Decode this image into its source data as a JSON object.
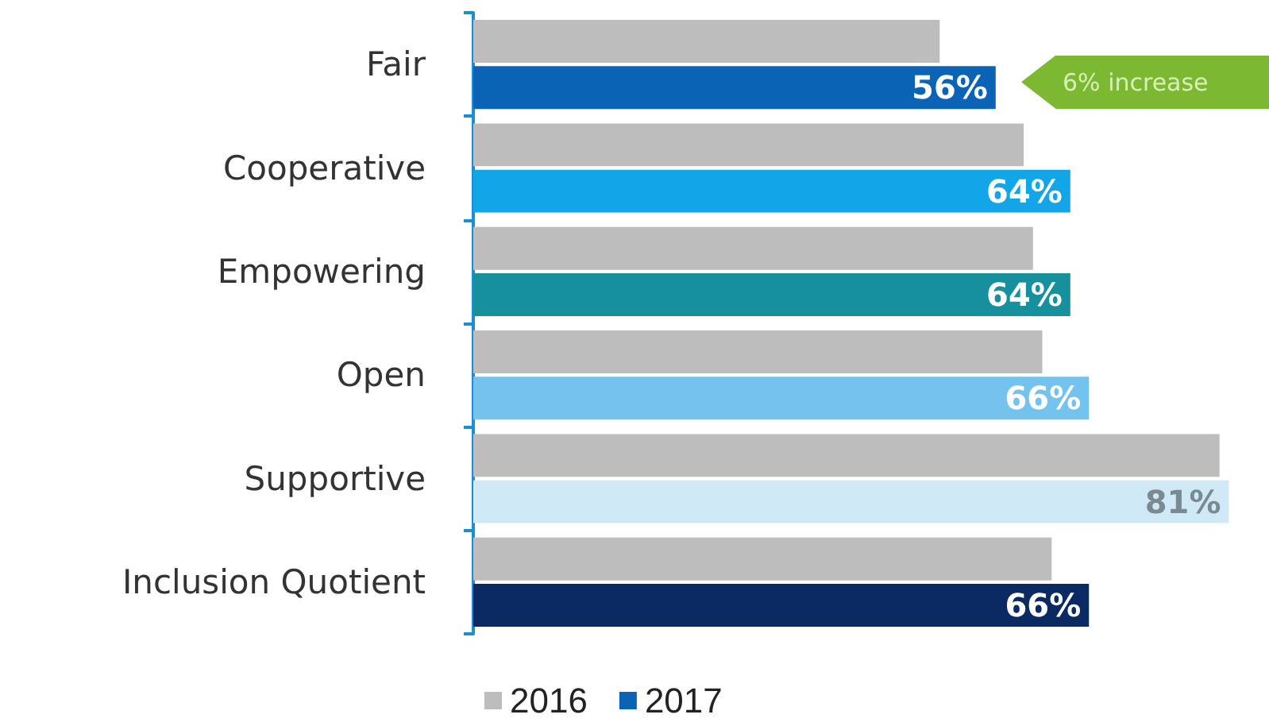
{
  "chart_data": {
    "type": "bar",
    "orientation": "horizontal",
    "categories": [
      "Fair",
      "Cooperative",
      "Empowering",
      "Open",
      "Supportive",
      "Inclusion Quotient"
    ],
    "series": [
      {
        "name": "2016",
        "color": "#bdbdbd",
        "values": [
          50,
          59,
          60,
          61,
          80,
          62
        ]
      },
      {
        "name": "2017",
        "color": "#0a63b5",
        "colors": [
          "#0a63b5",
          "#12a5e8",
          "#17909e",
          "#74c2ee",
          "#cfe9f7",
          "#0b2a63"
        ],
        "values": [
          56,
          64,
          64,
          66,
          81,
          66
        ],
        "value_labels": [
          "56%",
          "64%",
          "64%",
          "66%",
          "81%",
          "66%"
        ]
      }
    ],
    "annotations": [
      "6% increase"
    ],
    "legend": "bottom left"
  }
}
